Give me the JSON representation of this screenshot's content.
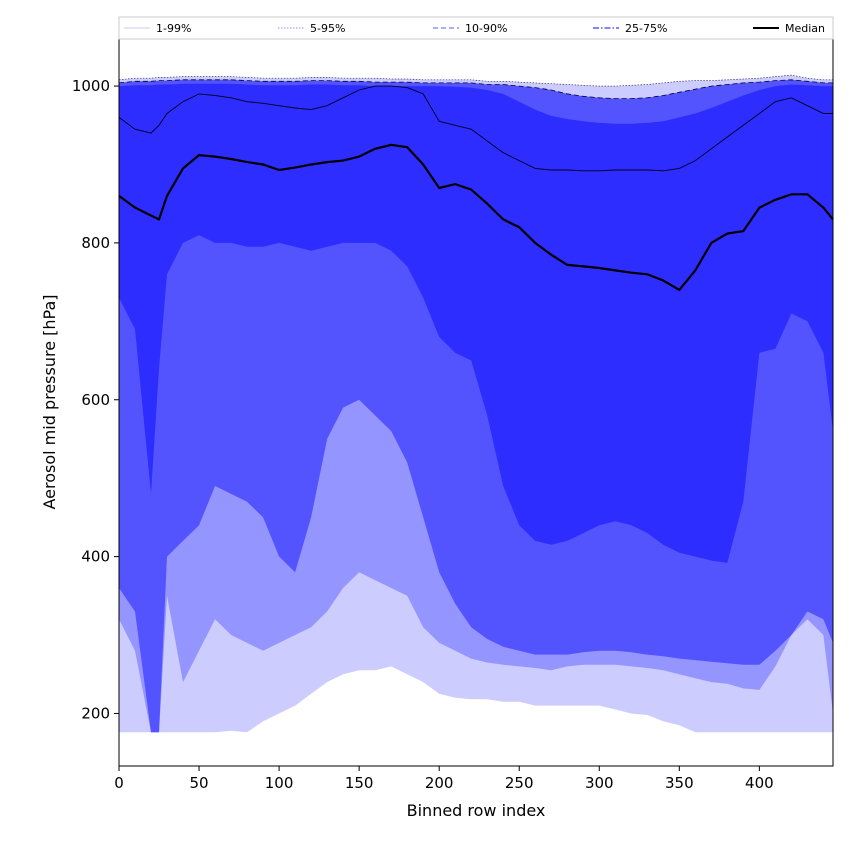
{
  "chart_data": {
    "type": "area",
    "xlabel": "Binned row index",
    "ylabel": "Aerosol mid pressure [hPa]",
    "xlim": [
      0,
      446
    ],
    "ylim": [
      133,
      1060
    ],
    "x_ticks": [
      0,
      50,
      100,
      150,
      200,
      250,
      300,
      350,
      400
    ],
    "y_ticks": [
      200,
      400,
      600,
      800,
      1000
    ],
    "grid": false,
    "legend_position": "top",
    "x": [
      0,
      10,
      20,
      25,
      30,
      40,
      50,
      60,
      70,
      80,
      90,
      100,
      110,
      120,
      130,
      140,
      150,
      160,
      170,
      180,
      190,
      200,
      210,
      220,
      230,
      240,
      250,
      260,
      270,
      280,
      290,
      300,
      310,
      320,
      330,
      340,
      350,
      360,
      370,
      380,
      390,
      400,
      410,
      420,
      430,
      440,
      446
    ],
    "bands": [
      {
        "name": "1-99%",
        "color": "#ccccff",
        "lower": [
          176,
          176,
          176,
          176,
          176,
          176,
          176,
          176,
          178,
          176,
          190,
          200,
          210,
          225,
          240,
          250,
          255,
          255,
          260,
          250,
          240,
          225,
          220,
          218,
          218,
          215,
          215,
          210,
          210,
          210,
          210,
          210,
          205,
          200,
          198,
          190,
          185,
          176,
          176,
          176,
          176,
          176,
          176,
          176,
          176,
          176,
          176
        ],
        "upper": [
          1008,
          1010,
          1010,
          1011,
          1011,
          1012,
          1012,
          1012,
          1012,
          1011,
          1010,
          1010,
          1010,
          1011,
          1011,
          1010,
          1010,
          1010,
          1009,
          1009,
          1008,
          1008,
          1008,
          1008,
          1006,
          1006,
          1005,
          1004,
          1003,
          1002,
          1001,
          1000,
          1000,
          1001,
          1002,
          1004,
          1006,
          1007,
          1007,
          1008,
          1009,
          1010,
          1012,
          1014,
          1010,
          1008,
          1008
        ]
      },
      {
        "name": "5-95%",
        "color": "#9595ff",
        "lower": [
          320,
          280,
          176,
          176,
          350,
          240,
          280,
          320,
          300,
          290,
          280,
          290,
          300,
          310,
          330,
          360,
          380,
          370,
          360,
          350,
          310,
          290,
          280,
          270,
          265,
          262,
          260,
          258,
          255,
          260,
          262,
          262,
          262,
          260,
          258,
          255,
          250,
          245,
          240,
          238,
          232,
          230,
          260,
          300,
          320,
          300,
          200
        ]
      },
      {
        "name": "10-90%",
        "color": "#5454ff",
        "lower": [
          360,
          330,
          176,
          176,
          400,
          420,
          440,
          490,
          480,
          470,
          450,
          400,
          380,
          450,
          550,
          590,
          600,
          580,
          560,
          520,
          450,
          380,
          340,
          310,
          295,
          285,
          280,
          275,
          275,
          275,
          278,
          280,
          280,
          278,
          275,
          273,
          270,
          268,
          266,
          264,
          262,
          262,
          280,
          300,
          330,
          320,
          290
        ],
        "upper": [
          1004,
          1006,
          1006,
          1007,
          1007,
          1008,
          1008,
          1008,
          1008,
          1007,
          1006,
          1006,
          1006,
          1007,
          1007,
          1006,
          1006,
          1005,
          1005,
          1005,
          1004,
          1004,
          1004,
          1004,
          1002,
          1002,
          1000,
          998,
          995,
          990,
          987,
          985,
          984,
          984,
          985,
          988,
          992,
          996,
          1000,
          1002,
          1004,
          1005,
          1007,
          1008,
          1006,
          1004,
          1004
        ]
      },
      {
        "name": "25-75%",
        "color": "#2d2dff",
        "lower": [
          730,
          690,
          480,
          640,
          760,
          800,
          810,
          800,
          800,
          795,
          795,
          800,
          795,
          790,
          795,
          800,
          800,
          800,
          790,
          770,
          730,
          680,
          660,
          650,
          580,
          490,
          440,
          420,
          415,
          420,
          430,
          440,
          445,
          440,
          430,
          415,
          405,
          400,
          395,
          392,
          470,
          660,
          665,
          710,
          700,
          660,
          560
        ],
        "upper": [
          1000,
          1001,
          1001,
          1002,
          1002,
          1003,
          1003,
          1003,
          1003,
          1002,
          1001,
          1001,
          1001,
          1002,
          1002,
          1001,
          1001,
          1000,
          1000,
          1000,
          1000,
          1000,
          999,
          998,
          995,
          990,
          980,
          970,
          962,
          958,
          955,
          953,
          952,
          952,
          953,
          955,
          960,
          965,
          972,
          980,
          988,
          995,
          1000,
          1002,
          1001,
          1000,
          1000
        ]
      }
    ],
    "inner_upper": {
      "color": "#2d2dff",
      "values": [
        960,
        945,
        940,
        950,
        965,
        980,
        990,
        988,
        985,
        980,
        978,
        975,
        972,
        970,
        975,
        985,
        995,
        1000,
        1000,
        998,
        990,
        955,
        950,
        945,
        930,
        915,
        905,
        895,
        893,
        893,
        892,
        892,
        893,
        893,
        893,
        892,
        895,
        905,
        920,
        935,
        950,
        965,
        980,
        985,
        975,
        965,
        965
      ]
    },
    "median": {
      "name": "Median",
      "color": "#000000",
      "values": [
        860,
        845,
        835,
        830,
        860,
        895,
        912,
        910,
        907,
        903,
        900,
        893,
        896,
        900,
        903,
        905,
        910,
        920,
        925,
        922,
        900,
        870,
        875,
        868,
        850,
        830,
        820,
        800,
        785,
        772,
        770,
        768,
        765,
        762,
        760,
        752,
        740,
        765,
        800,
        812,
        815,
        845,
        855,
        862,
        862,
        845,
        830
      ]
    },
    "legend": [
      {
        "label": "1-99%",
        "style": "solid",
        "color": "#d4d4ff"
      },
      {
        "label": "5-95%",
        "style": "dotted",
        "color": "#a6a6ff"
      },
      {
        "label": "10-90%",
        "style": "dashed",
        "color": "#7b7bff"
      },
      {
        "label": "25-75%",
        "style": "dashdot",
        "color": "#3a3aff"
      },
      {
        "label": "Median",
        "style": "solid",
        "color": "#000000"
      }
    ]
  }
}
